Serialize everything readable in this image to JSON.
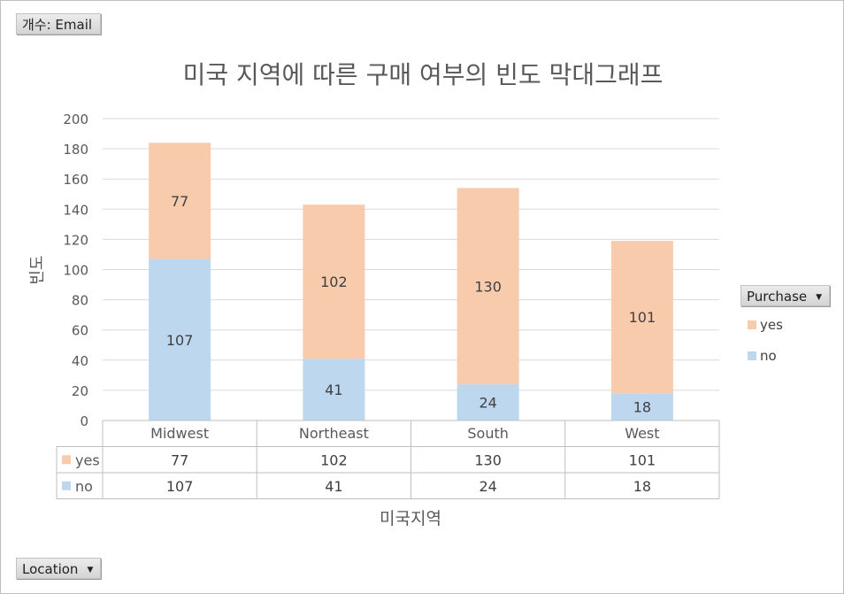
{
  "values_field": {
    "label": "개수: Email"
  },
  "axis_field": {
    "label": "Location",
    "arrow": "▼"
  },
  "legend_field": {
    "label": "Purchase",
    "arrow": "▼"
  },
  "legend": [
    {
      "name": "yes",
      "color": "#f8cbad"
    },
    {
      "name": "no",
      "color": "#bdd7ee"
    }
  ],
  "chart_data": {
    "type": "bar",
    "stacked": true,
    "title": "미국 지역에 따른 구매 여부의 빈도 막대그래프",
    "xlabel": "미국지역",
    "ylabel": "빈도",
    "ylim": [
      0,
      200
    ],
    "yticks": [
      "0",
      "20",
      "40",
      "60",
      "80",
      "100",
      "120",
      "140",
      "160",
      "180",
      "200"
    ],
    "grid": true,
    "legend_position": "right",
    "categories": [
      "Midwest",
      "Northeast",
      "South",
      "West"
    ],
    "series": [
      {
        "name": "no",
        "color": "#bdd7ee",
        "values": [
          107,
          41,
          24,
          18
        ]
      },
      {
        "name": "yes",
        "color": "#f8cbad",
        "values": [
          77,
          102,
          130,
          101
        ]
      }
    ],
    "data_table": [
      {
        "name": "yes",
        "color": "#f8cbad",
        "values": [
          "77",
          "102",
          "130",
          "101"
        ]
      },
      {
        "name": "no",
        "color": "#bdd7ee",
        "values": [
          "107",
          "41",
          "24",
          "18"
        ]
      }
    ]
  }
}
